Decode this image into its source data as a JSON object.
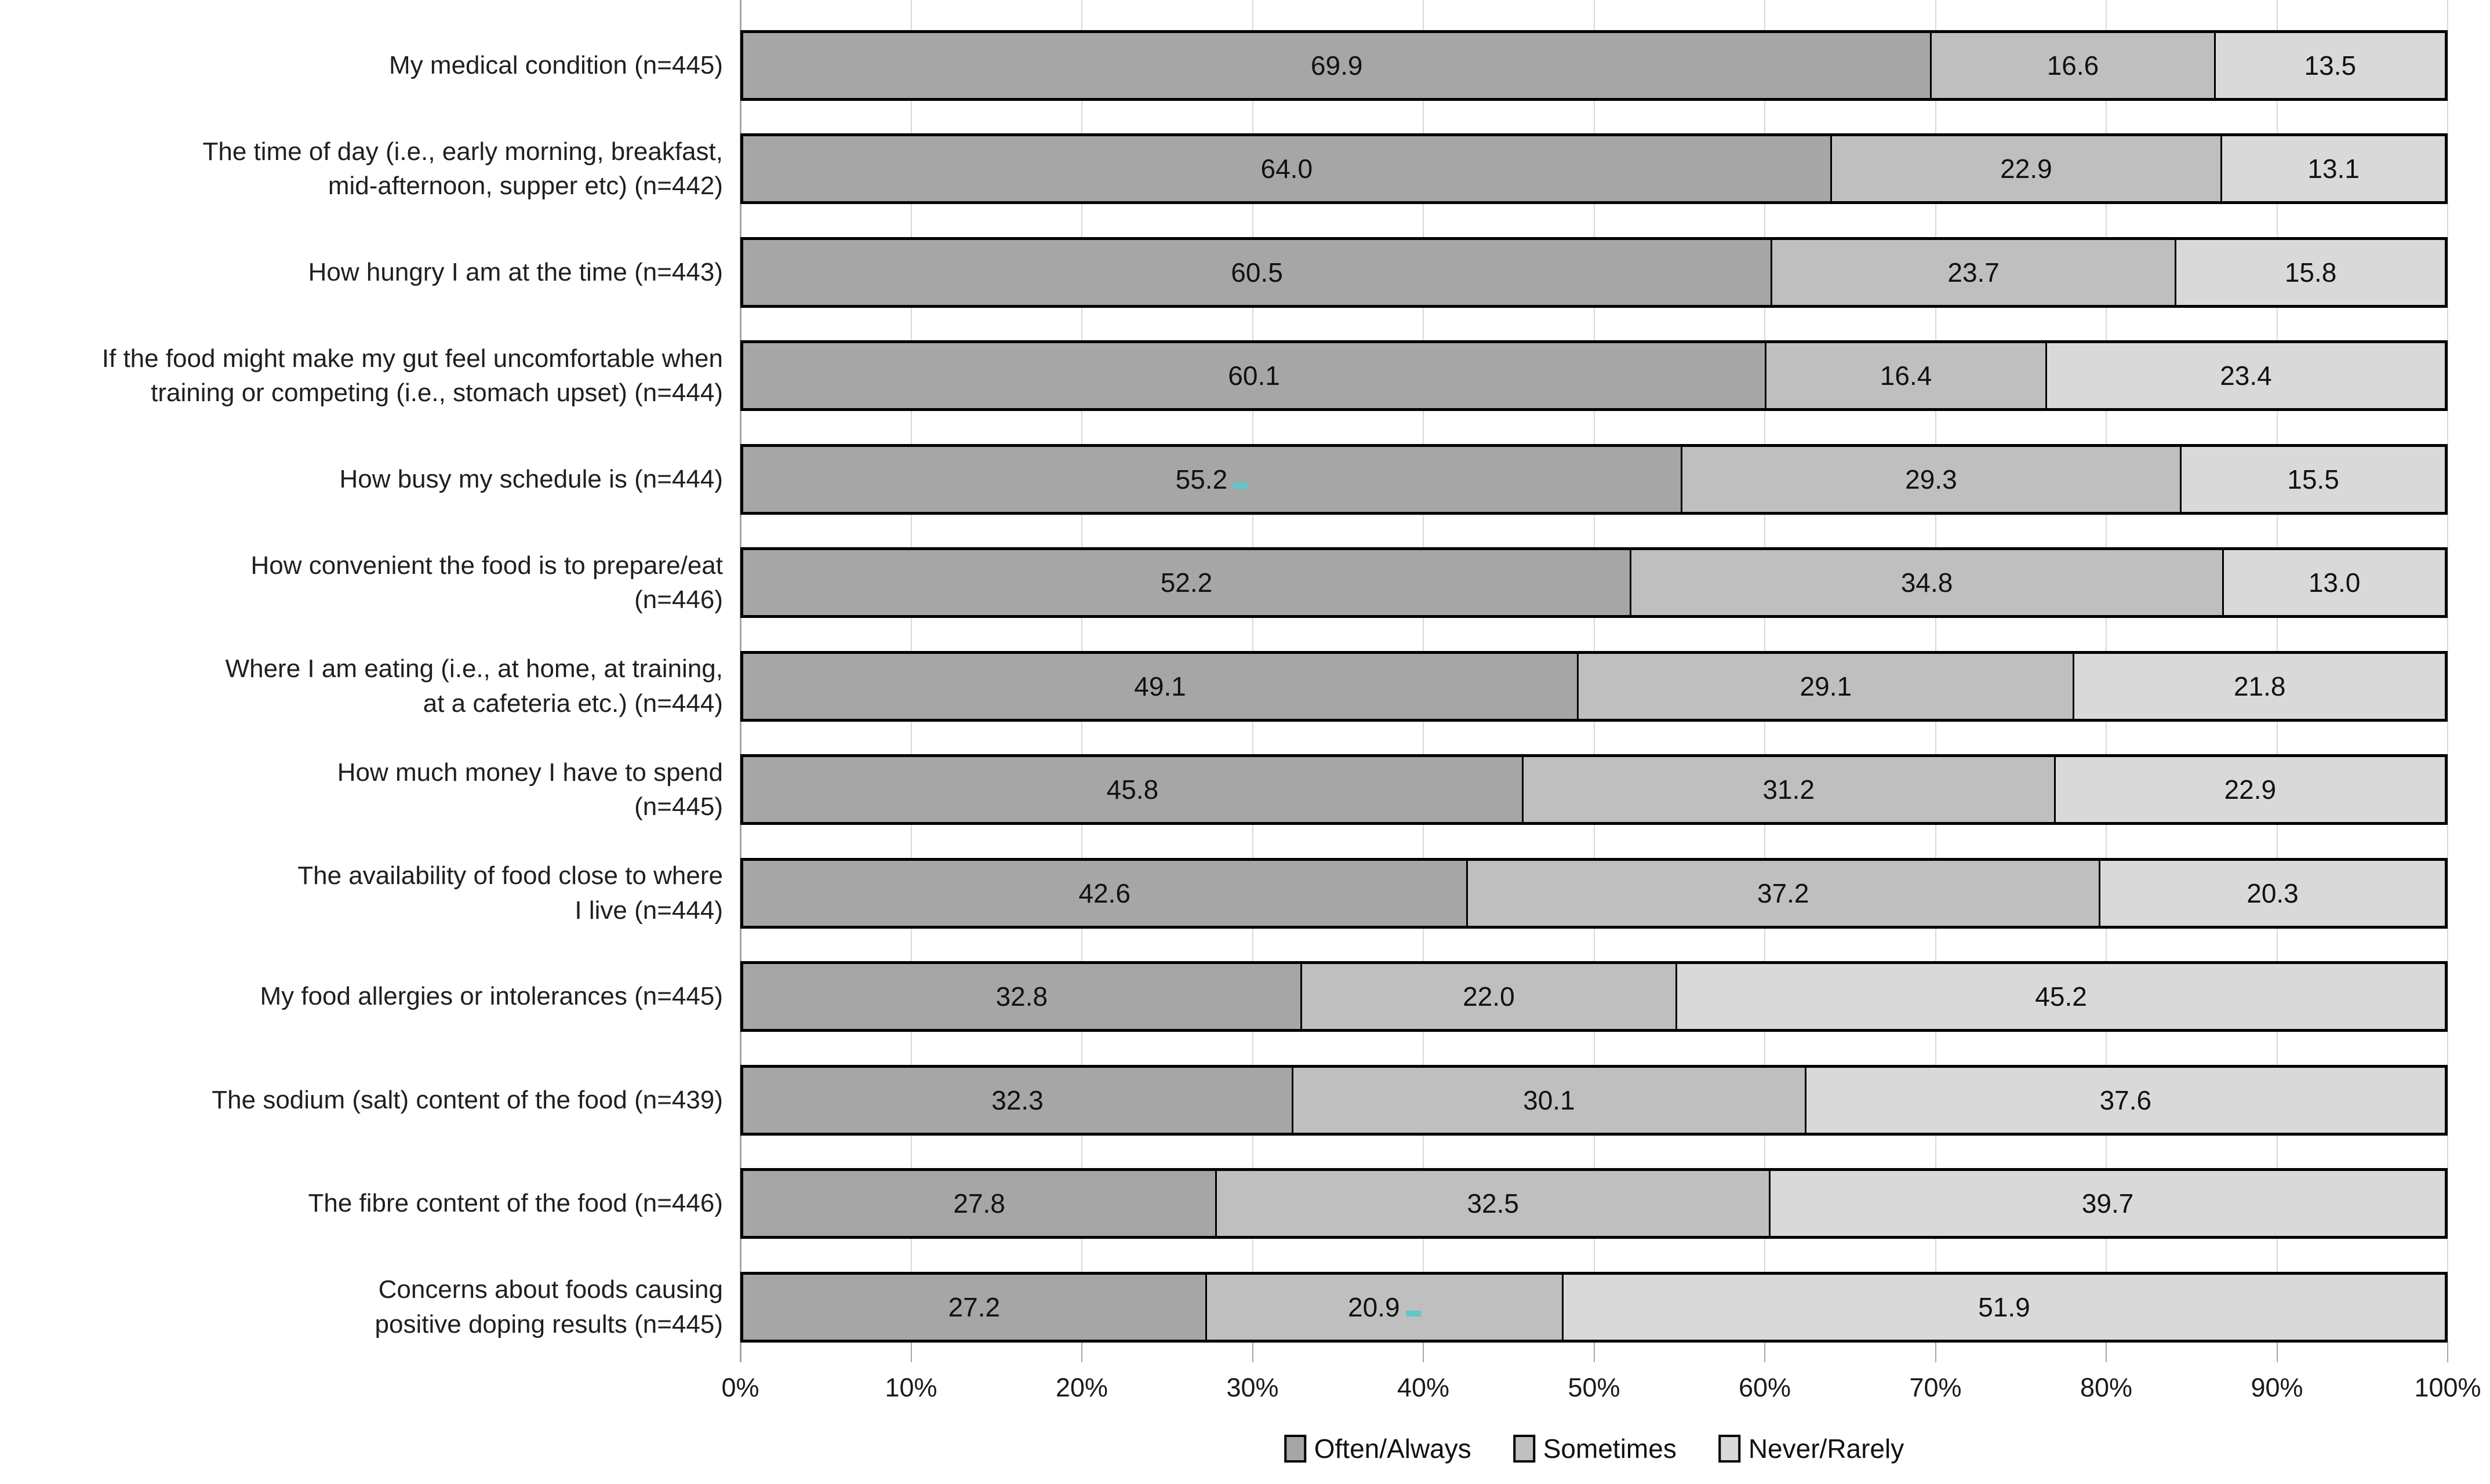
{
  "chart_data": {
    "type": "bar",
    "orientation": "horizontal-stacked",
    "title": "",
    "xlabel": "",
    "ylabel": "",
    "xlim": [
      0,
      100
    ],
    "grid": true,
    "legend_position": "bottom",
    "x_ticks": [
      "0%",
      "10%",
      "20%",
      "30%",
      "40%",
      "50%",
      "60%",
      "70%",
      "80%",
      "90%",
      "100%"
    ],
    "categories": [
      [
        "My medical condition (n=445)"
      ],
      [
        "The time of day (i.e., early morning, breakfast,",
        "mid-afternoon, supper etc) (n=442)"
      ],
      [
        "How hungry I am at the time (n=443)"
      ],
      [
        "If the food might make my gut feel uncomfortable when",
        "training or competing (i.e., stomach upset) (n=444)"
      ],
      [
        "How busy my schedule is (n=444)"
      ],
      [
        "How convenient the food is to prepare/eat",
        "(n=446)"
      ],
      [
        "Where I am eating (i.e., at home, at training,",
        "at a cafeteria etc.) (n=444)"
      ],
      [
        "How much money I have to spend",
        "(n=445)"
      ],
      [
        "The availability of food close to where",
        "I live (n=444)"
      ],
      [
        "My food allergies or intolerances (n=445)"
      ],
      [
        "The sodium (salt) content of the food (n=439)"
      ],
      [
        "The fibre content of the food (n=446)"
      ],
      [
        "Concerns about foods causing",
        "positive doping results (n=445)"
      ]
    ],
    "series": [
      {
        "name": "Often/Always",
        "color": "#a6a6a6",
        "values": [
          69.9,
          64.0,
          60.5,
          60.1,
          55.2,
          52.2,
          49.1,
          45.8,
          42.6,
          32.8,
          32.3,
          27.8,
          27.2
        ]
      },
      {
        "name": "Sometimes",
        "color": "#bfbfbf",
        "values": [
          16.6,
          22.9,
          23.7,
          16.4,
          29.3,
          34.8,
          29.1,
          31.2,
          37.2,
          22.0,
          30.1,
          32.5,
          20.9
        ]
      },
      {
        "name": "Never/Rarely",
        "color": "#d9d9d9",
        "values": [
          13.5,
          13.1,
          15.8,
          23.4,
          15.5,
          13.0,
          21.8,
          22.9,
          20.3,
          45.2,
          37.6,
          39.7,
          51.9
        ]
      }
    ],
    "value_labels_decimals": 1,
    "annotations": [
      {
        "row": 4,
        "segment": 0,
        "type": "teal-dash"
      },
      {
        "row": 12,
        "segment": 1,
        "type": "teal-dash"
      }
    ],
    "annotation_color": "#5fc8ca",
    "colors": {
      "bar_border": "#000000",
      "gridline": "#d9d9d9",
      "axis": "#a6a6a6",
      "text": "#1a1a1a"
    }
  }
}
